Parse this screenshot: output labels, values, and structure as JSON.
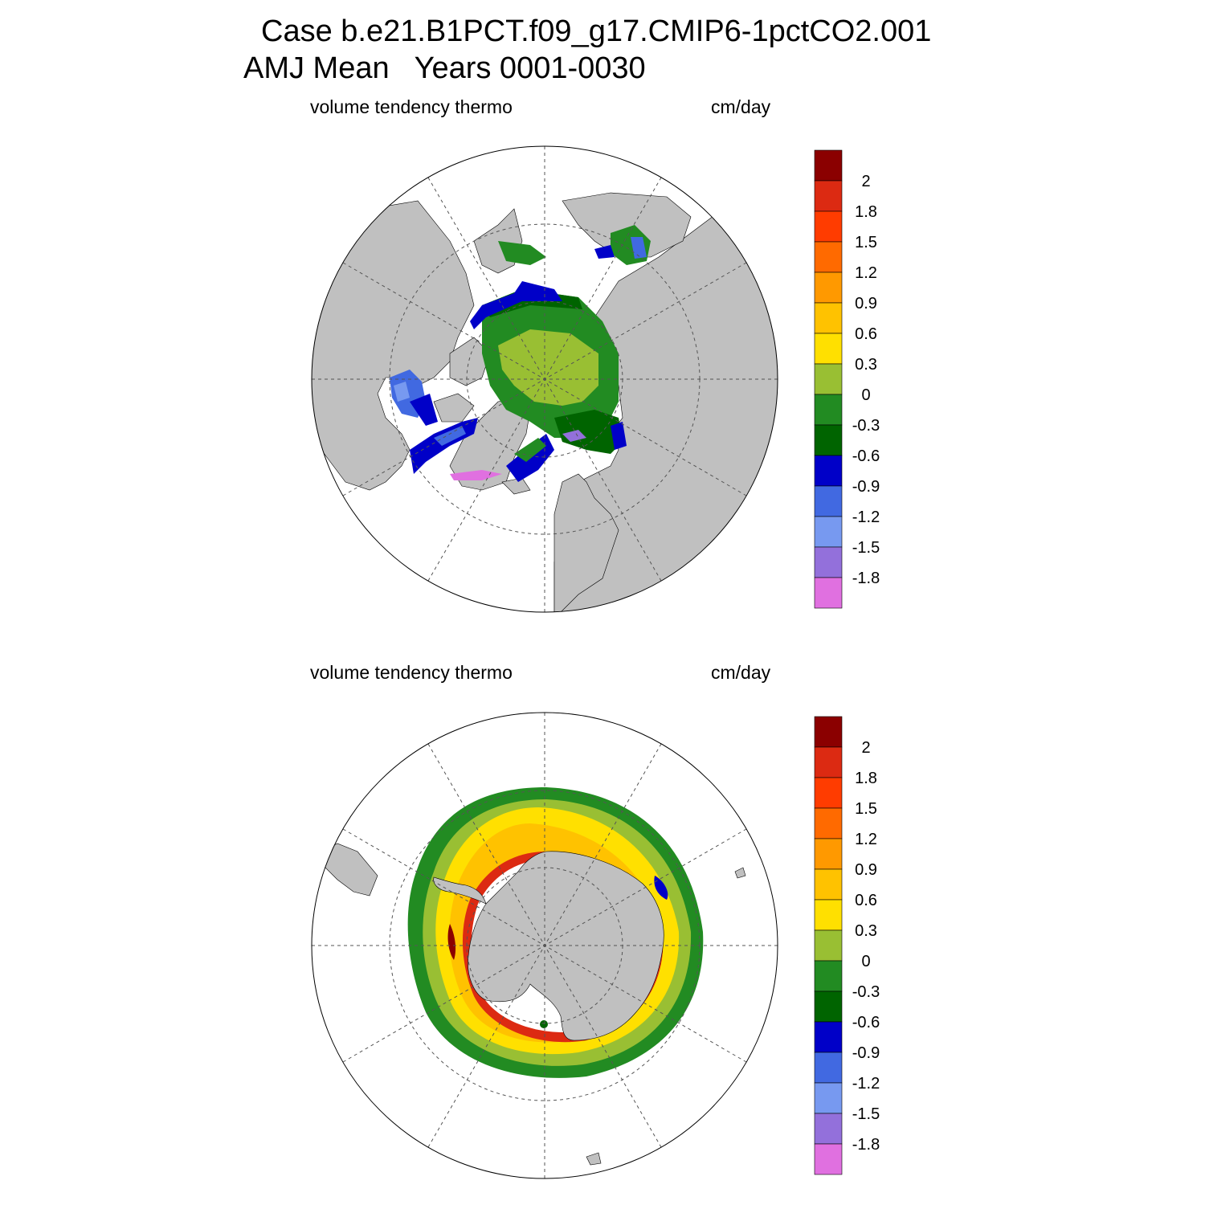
{
  "title": {
    "line1": "Case b.e21.B1PCT.f09_g17.CMIP6-1pctCO2.001",
    "line2": "AMJ Mean   Years 0001-0030"
  },
  "panels": [
    {
      "id": "north",
      "left_label": "volume tendency thermo",
      "right_label": "cm/day",
      "hemisphere": "Northern Hemisphere"
    },
    {
      "id": "south",
      "left_label": "volume tendency thermo",
      "right_label": "cm/day",
      "hemisphere": "Southern Hemisphere"
    }
  ],
  "colorbar": {
    "labels": [
      "2",
      "1.8",
      "1.5",
      "1.2",
      "0.9",
      "0.6",
      "0.3",
      "0",
      "-0.3",
      "-0.6",
      "-0.9",
      "-1.2",
      "-1.5",
      "-1.8"
    ],
    "colors": [
      "#8b0000",
      "#dc2a12",
      "#ff3c00",
      "#ff6a00",
      "#ff9900",
      "#ffc200",
      "#ffe000",
      "#99bf33",
      "#228b22",
      "#006400",
      "#0000c8",
      "#4169e1",
      "#7799f0",
      "#9370db",
      "#e070e0"
    ]
  },
  "map_colors": {
    "land": "#c0c0c0",
    "ocean": "#ffffff",
    "grid": "#555555"
  }
}
